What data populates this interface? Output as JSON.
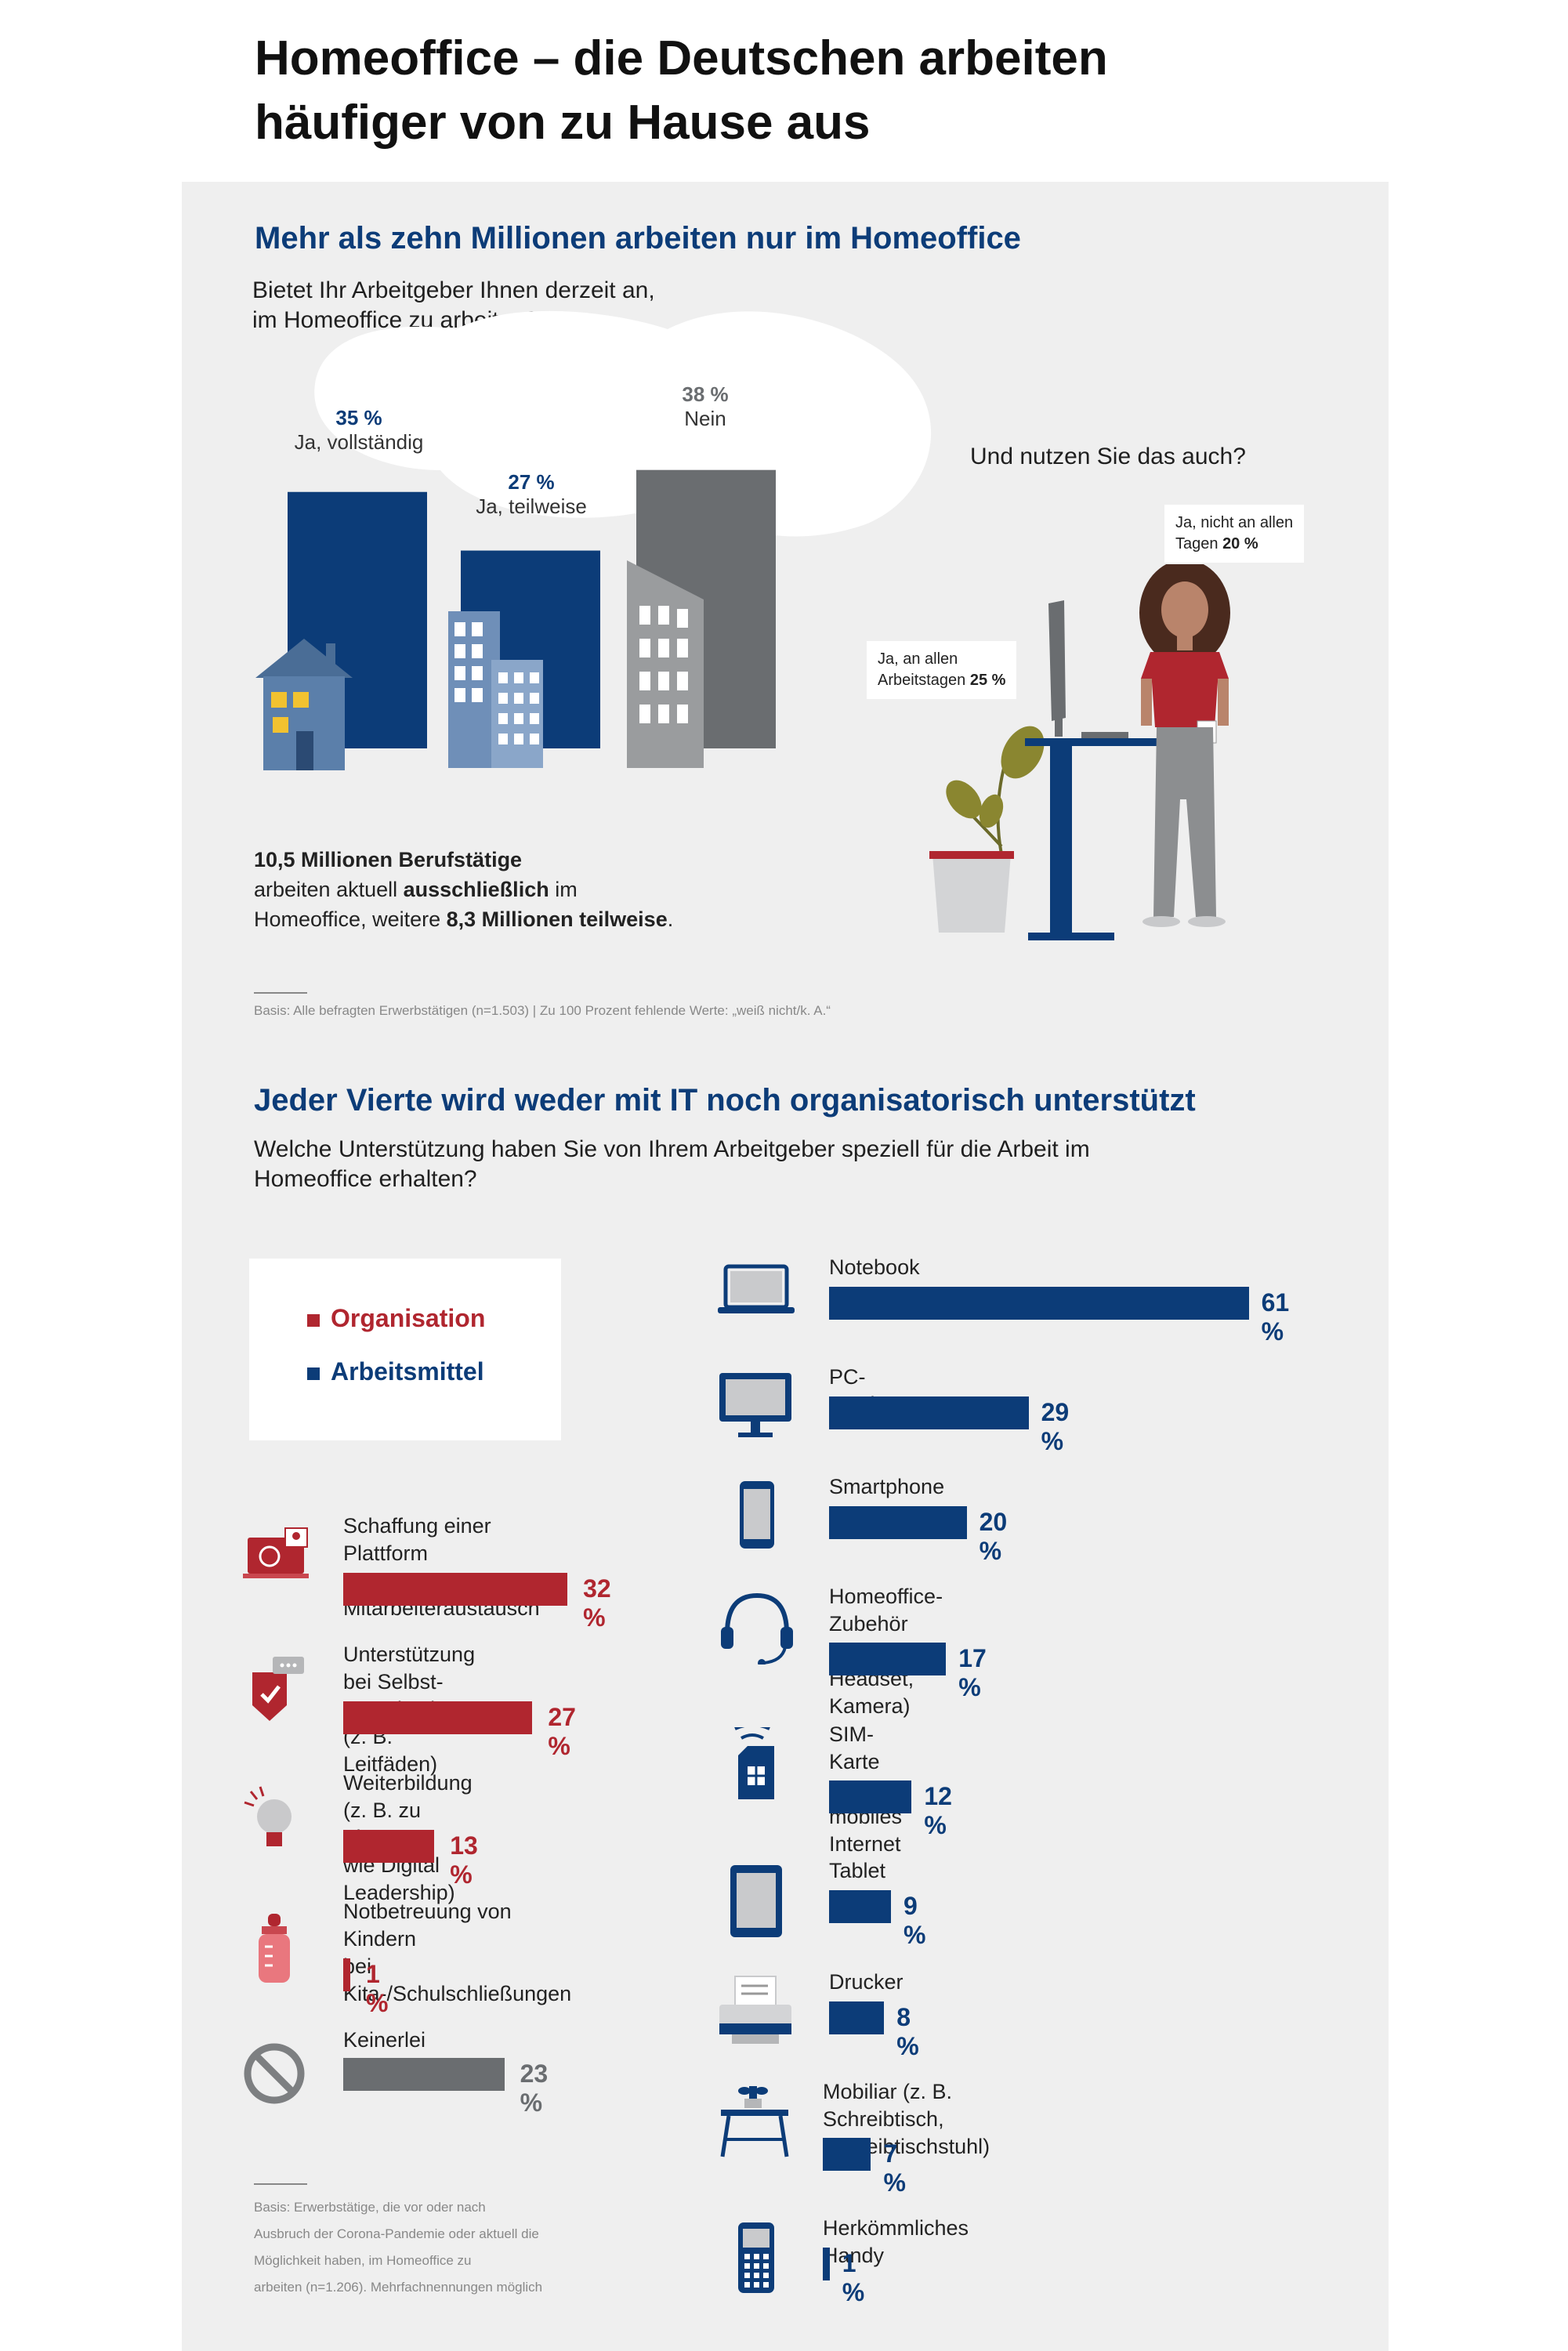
{
  "title_line1": "Homeoffice – die Deutschen arbeiten",
  "title_line2": "häufiger von zu Hause aus",
  "section1": {
    "heading": "Mehr als zehn Millionen arbeiten nur im Homeoffice",
    "question_line1": "Bietet Ihr Arbeitgeber Ihnen derzeit an,",
    "question_line2": "im Homeoffice zu arbeiten?",
    "summary_bold1": "10,5 Millionen Berufstätige",
    "summary_text1": "arbeiten aktuell ",
    "summary_bold2": "ausschließlich",
    "summary_text2": " im",
    "summary_text3": "Homeoffice, weitere ",
    "summary_bold3": "8,3 Millionen teilweise",
    "summary_text4": ".",
    "basis": "Basis: Alle befragten Erwerbstätigen (n=1.503) | Zu 100 Prozent fehlende Werte: „weiß nicht/k. A.“",
    "usage_question": "Und nutzen Sie das auch?",
    "callout_all_line1": "Ja, an allen",
    "callout_all_line2": "Arbeitstagen",
    "callout_all_pct": "25 %",
    "callout_some_line1": "Ja, nicht an allen",
    "callout_some_line2": "Tagen",
    "callout_some_pct": "20 %"
  },
  "section2": {
    "heading": "Jeder Vierte wird weder mit IT noch organisatorisch unterstützt",
    "question_line1": "Welche Unterstützung haben Sie von Ihrem Arbeitgeber speziell für die Arbeit im",
    "question_line2": "Homeoffice erhalten?",
    "legend_org": "Organisation",
    "legend_arb": "Arbeitsmittel",
    "basis_lines": [
      "Basis: Erwerbstätige, die vor oder nach",
      "Ausbruch der Corona-Pandemie oder aktuell die",
      "Möglichkeit haben, im Homeoffice zu",
      "arbeiten (n=1.206). Mehrfachnennungen möglich"
    ]
  },
  "colors": {
    "navy": "#0c3c78",
    "red": "#b0262f",
    "grey": "#6a6d70",
    "panel": "#efefef"
  },
  "chart_data": [
    {
      "type": "bar",
      "categories": [
        "Ja, vollständig",
        "Ja, teilweise",
        "Nein"
      ],
      "values": [
        35,
        27,
        38
      ],
      "labels": [
        "35 %",
        "27 %",
        "38 %"
      ],
      "colors": [
        "#0c3c78",
        "#0c3c78",
        "#6a6d70"
      ]
    },
    {
      "type": "bar",
      "orientation": "horizontal",
      "series_name": "Organisation",
      "items": [
        {
          "line1": "Schaffung einer Plattform",
          "line2": "zum Mitarbeiteraustausch",
          "value": 32,
          "label": "32 %",
          "icon": "laptop-chat-icon"
        },
        {
          "line1": "Unterstützung bei Selbst-",
          "line2": "organisation (z. B. Leitfäden)",
          "value": 27,
          "label": "27 %",
          "icon": "shield-check-icon"
        },
        {
          "line1": "Weiterbildung (z. B. zu Themen",
          "line2": "wie Digital Leadership)",
          "value": 13,
          "label": "13 %",
          "icon": "lightbulb-icon"
        },
        {
          "line1": "Notbetreuung von Kindern",
          "line2": "bei Kita-/Schulschließungen",
          "value": 1,
          "label": "1 %",
          "icon": "baby-bottle-icon"
        },
        {
          "line1": "Keinerlei Unterstützung",
          "line2": "",
          "value": 23,
          "label": "23 %",
          "icon": "no-sign-icon",
          "color": "grey"
        }
      ]
    },
    {
      "type": "bar",
      "orientation": "horizontal",
      "series_name": "Arbeitsmittel",
      "items": [
        {
          "line1": "Notebook",
          "line2": "",
          "value": 61,
          "label": "61 %",
          "icon": "laptop-icon"
        },
        {
          "line1": "PC-Monitor",
          "line2": "",
          "value": 29,
          "label": "29 %",
          "icon": "monitor-icon"
        },
        {
          "line1": "Smartphone",
          "line2": "",
          "value": 20,
          "label": "20 %",
          "icon": "smartphone-icon"
        },
        {
          "line1": "Homeoffice-Zubehör",
          "line2": "(z. B. Headset, Kamera)",
          "value": 17,
          "label": "17 %",
          "icon": "headset-icon"
        },
        {
          "line1": "SIM-Karte für",
          "line2": "mobiles Internet",
          "value": 12,
          "label": "12 %",
          "icon": "sim-card-icon"
        },
        {
          "line1": "Tablet",
          "line2": "",
          "value": 9,
          "label": "9 %",
          "icon": "tablet-icon"
        },
        {
          "line1": "Drucker",
          "line2": "",
          "value": 8,
          "label": "8 %",
          "icon": "printer-icon"
        },
        {
          "line1": "Mobiliar (z. B. Schreibtisch,",
          "line2": "Schreibtischstuhl)",
          "value": 7,
          "label": "7 %",
          "icon": "furniture-icon"
        },
        {
          "line1": "Herkömmliches Handy",
          "line2": "",
          "value": 1,
          "label": "1 %",
          "icon": "feature-phone-icon"
        }
      ]
    }
  ]
}
